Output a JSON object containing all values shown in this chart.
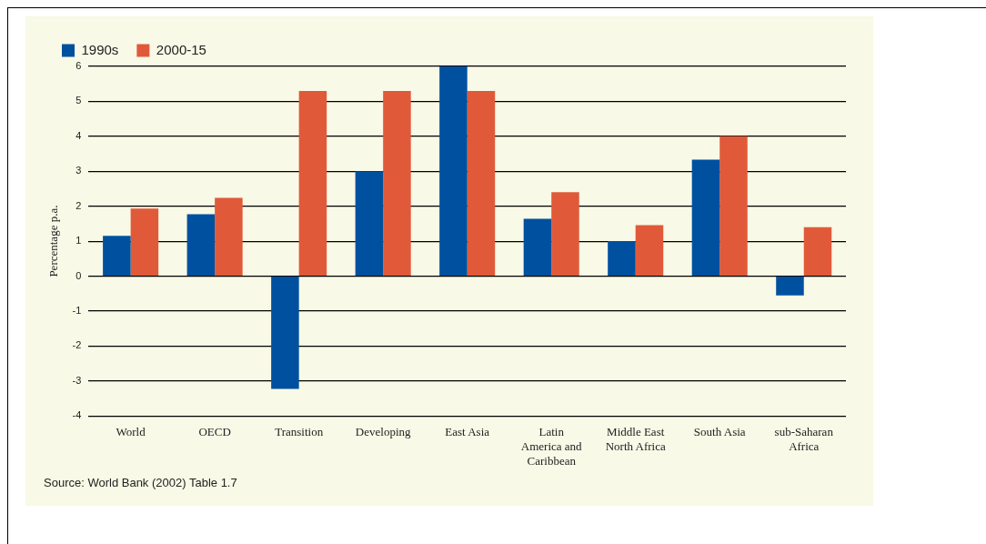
{
  "chart_data": {
    "type": "bar",
    "ylabel": "Percentage p.a.",
    "categories": [
      "World",
      "OECD",
      "Transition",
      "Developing",
      "East Asia",
      "Latin America and Caribbean",
      "Middle East North Africa",
      "South Asia",
      "sub-Saharan Africa"
    ],
    "series": [
      {
        "name": "1990s",
        "color": "#0050a0",
        "values": [
          1.15,
          1.77,
          -3.23,
          3.0,
          6.0,
          1.64,
          1.0,
          3.33,
          -0.55
        ]
      },
      {
        "name": "2000-15",
        "color": "#e05a3a",
        "values": [
          1.93,
          2.24,
          5.3,
          5.3,
          5.3,
          2.4,
          1.46,
          4.0,
          1.4
        ]
      }
    ],
    "ylim": [
      -4,
      6
    ],
    "yticks": [
      -4,
      -3,
      -2,
      -1,
      0,
      1,
      2,
      3,
      4,
      5,
      6
    ],
    "grid": "y",
    "legend": "top left",
    "annotations": [
      "Source: World Bank (2002) Table 1.7"
    ]
  }
}
